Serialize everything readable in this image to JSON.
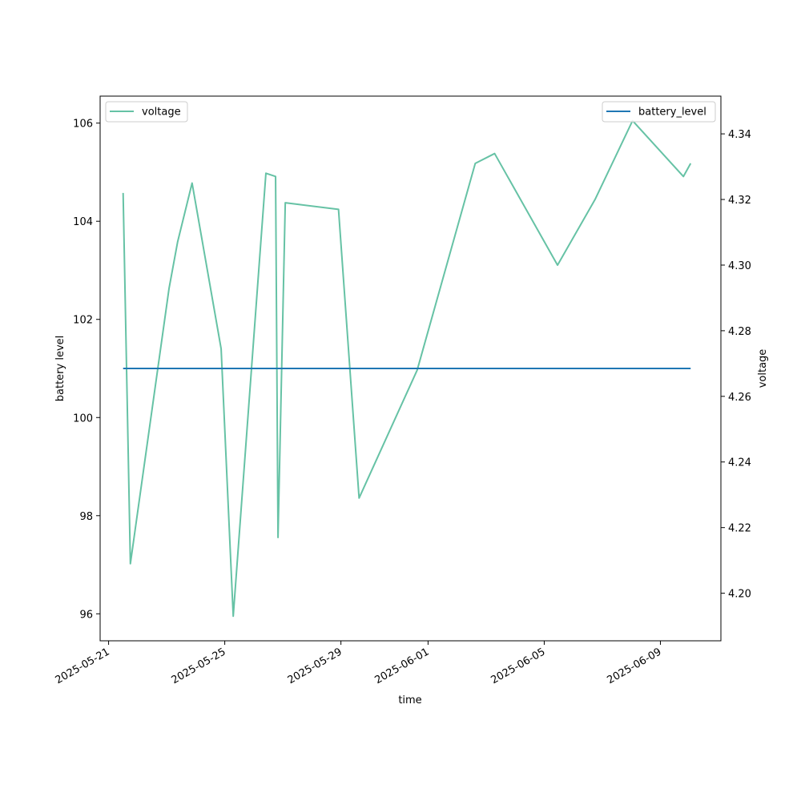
{
  "chart_data": {
    "type": "line",
    "title": "",
    "xlabel": "time",
    "ylabel_left": "battery level",
    "ylabel_right": "voltage",
    "x_ticks": [
      "2025-05-21",
      "2025-05-25",
      "2025-05-29",
      "2025-06-01",
      "2025-06-05",
      "2025-06-09"
    ],
    "y_left_ticks": [
      "96",
      "98",
      "100",
      "102",
      "104",
      "106"
    ],
    "y_right_ticks": [
      "4.20",
      "4.22",
      "4.24",
      "4.26",
      "4.28",
      "4.30",
      "4.32",
      "4.34"
    ],
    "xlim": [
      "2025-05-20T17:00",
      "2025-06-11T02:00"
    ],
    "ylim_left": [
      95.45,
      106.55
    ],
    "ylim_right": [
      4.1855,
      4.3515
    ],
    "grid": false,
    "series": [
      {
        "name": "voltage",
        "axis": "right",
        "color": "#66c2a5",
        "legend_position": "upper-left",
        "points": [
          {
            "x": "2025-05-21T12:00",
            "y": 4.322
          },
          {
            "x": "2025-05-21T18:00",
            "y": 4.209
          },
          {
            "x": "2025-05-23T02:00",
            "y": 4.293
          },
          {
            "x": "2025-05-23T09:00",
            "y": 4.307
          },
          {
            "x": "2025-05-23T21:00",
            "y": 4.325
          },
          {
            "x": "2025-05-24T21:00",
            "y": 4.2745
          },
          {
            "x": "2025-05-25T07:00",
            "y": 4.193
          },
          {
            "x": "2025-05-26T10:00",
            "y": 4.328
          },
          {
            "x": "2025-05-26T18:00",
            "y": 4.327
          },
          {
            "x": "2025-05-26T20:00",
            "y": 4.217
          },
          {
            "x": "2025-05-27T02:00",
            "y": 4.319
          },
          {
            "x": "2025-05-28T22:00",
            "y": 4.317
          },
          {
            "x": "2025-05-29T15:00",
            "y": 4.229
          },
          {
            "x": "2025-05-31T15:00",
            "y": 4.268
          },
          {
            "x": "2025-06-02T15:00",
            "y": 4.331
          },
          {
            "x": "2025-06-03T07:00",
            "y": 4.334
          },
          {
            "x": "2025-06-05T11:00",
            "y": 4.3
          },
          {
            "x": "2025-06-06T18:00",
            "y": 4.32
          },
          {
            "x": "2025-06-08T01:00",
            "y": 4.344
          },
          {
            "x": "2025-06-09T19:00",
            "y": 4.327
          },
          {
            "x": "2025-06-10T01:00",
            "y": 4.331
          }
        ]
      },
      {
        "name": "battery_level",
        "axis": "left",
        "color": "#1f77b4",
        "legend_position": "upper-right",
        "points": [
          {
            "x": "2025-05-21T12:00",
            "y": 101
          },
          {
            "x": "2025-06-10T01:00",
            "y": 101
          }
        ]
      }
    ]
  }
}
